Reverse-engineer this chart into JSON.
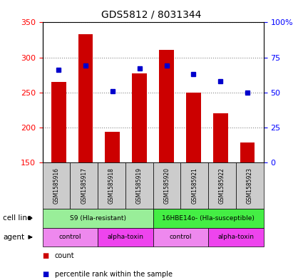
{
  "title": "GDS5812 / 8031344",
  "samples": [
    "GSM1585916",
    "GSM1585917",
    "GSM1585918",
    "GSM1585919",
    "GSM1585920",
    "GSM1585921",
    "GSM1585922",
    "GSM1585923"
  ],
  "counts": [
    265,
    333,
    194,
    277,
    311,
    250,
    220,
    178
  ],
  "percentile_ranks": [
    66,
    69,
    51,
    67,
    69,
    63,
    58,
    50
  ],
  "ymin": 150,
  "ymax": 350,
  "yticks_left": [
    150,
    200,
    250,
    300,
    350
  ],
  "yticks_right": [
    0,
    25,
    50,
    75,
    100
  ],
  "bar_color": "#cc0000",
  "marker_color": "#0000cc",
  "cell_line_groups": [
    {
      "label": "S9 (Hla-resistant)",
      "start": 0,
      "end": 3,
      "color": "#99ee99"
    },
    {
      "label": "16HBE14o- (Hla-susceptible)",
      "start": 4,
      "end": 7,
      "color": "#44ee44"
    }
  ],
  "agent_groups": [
    {
      "label": "control",
      "start": 0,
      "end": 1,
      "color": "#ee88ee"
    },
    {
      "label": "alpha-toxin",
      "start": 2,
      "end": 3,
      "color": "#ee44ee"
    },
    {
      "label": "control",
      "start": 4,
      "end": 5,
      "color": "#ee88ee"
    },
    {
      "label": "alpha-toxin",
      "start": 6,
      "end": 7,
      "color": "#ee44ee"
    }
  ],
  "sample_box_color": "#cccccc",
  "legend_count_color": "#cc0000",
  "legend_percentile_color": "#0000cc",
  "grid_color": "#888888"
}
